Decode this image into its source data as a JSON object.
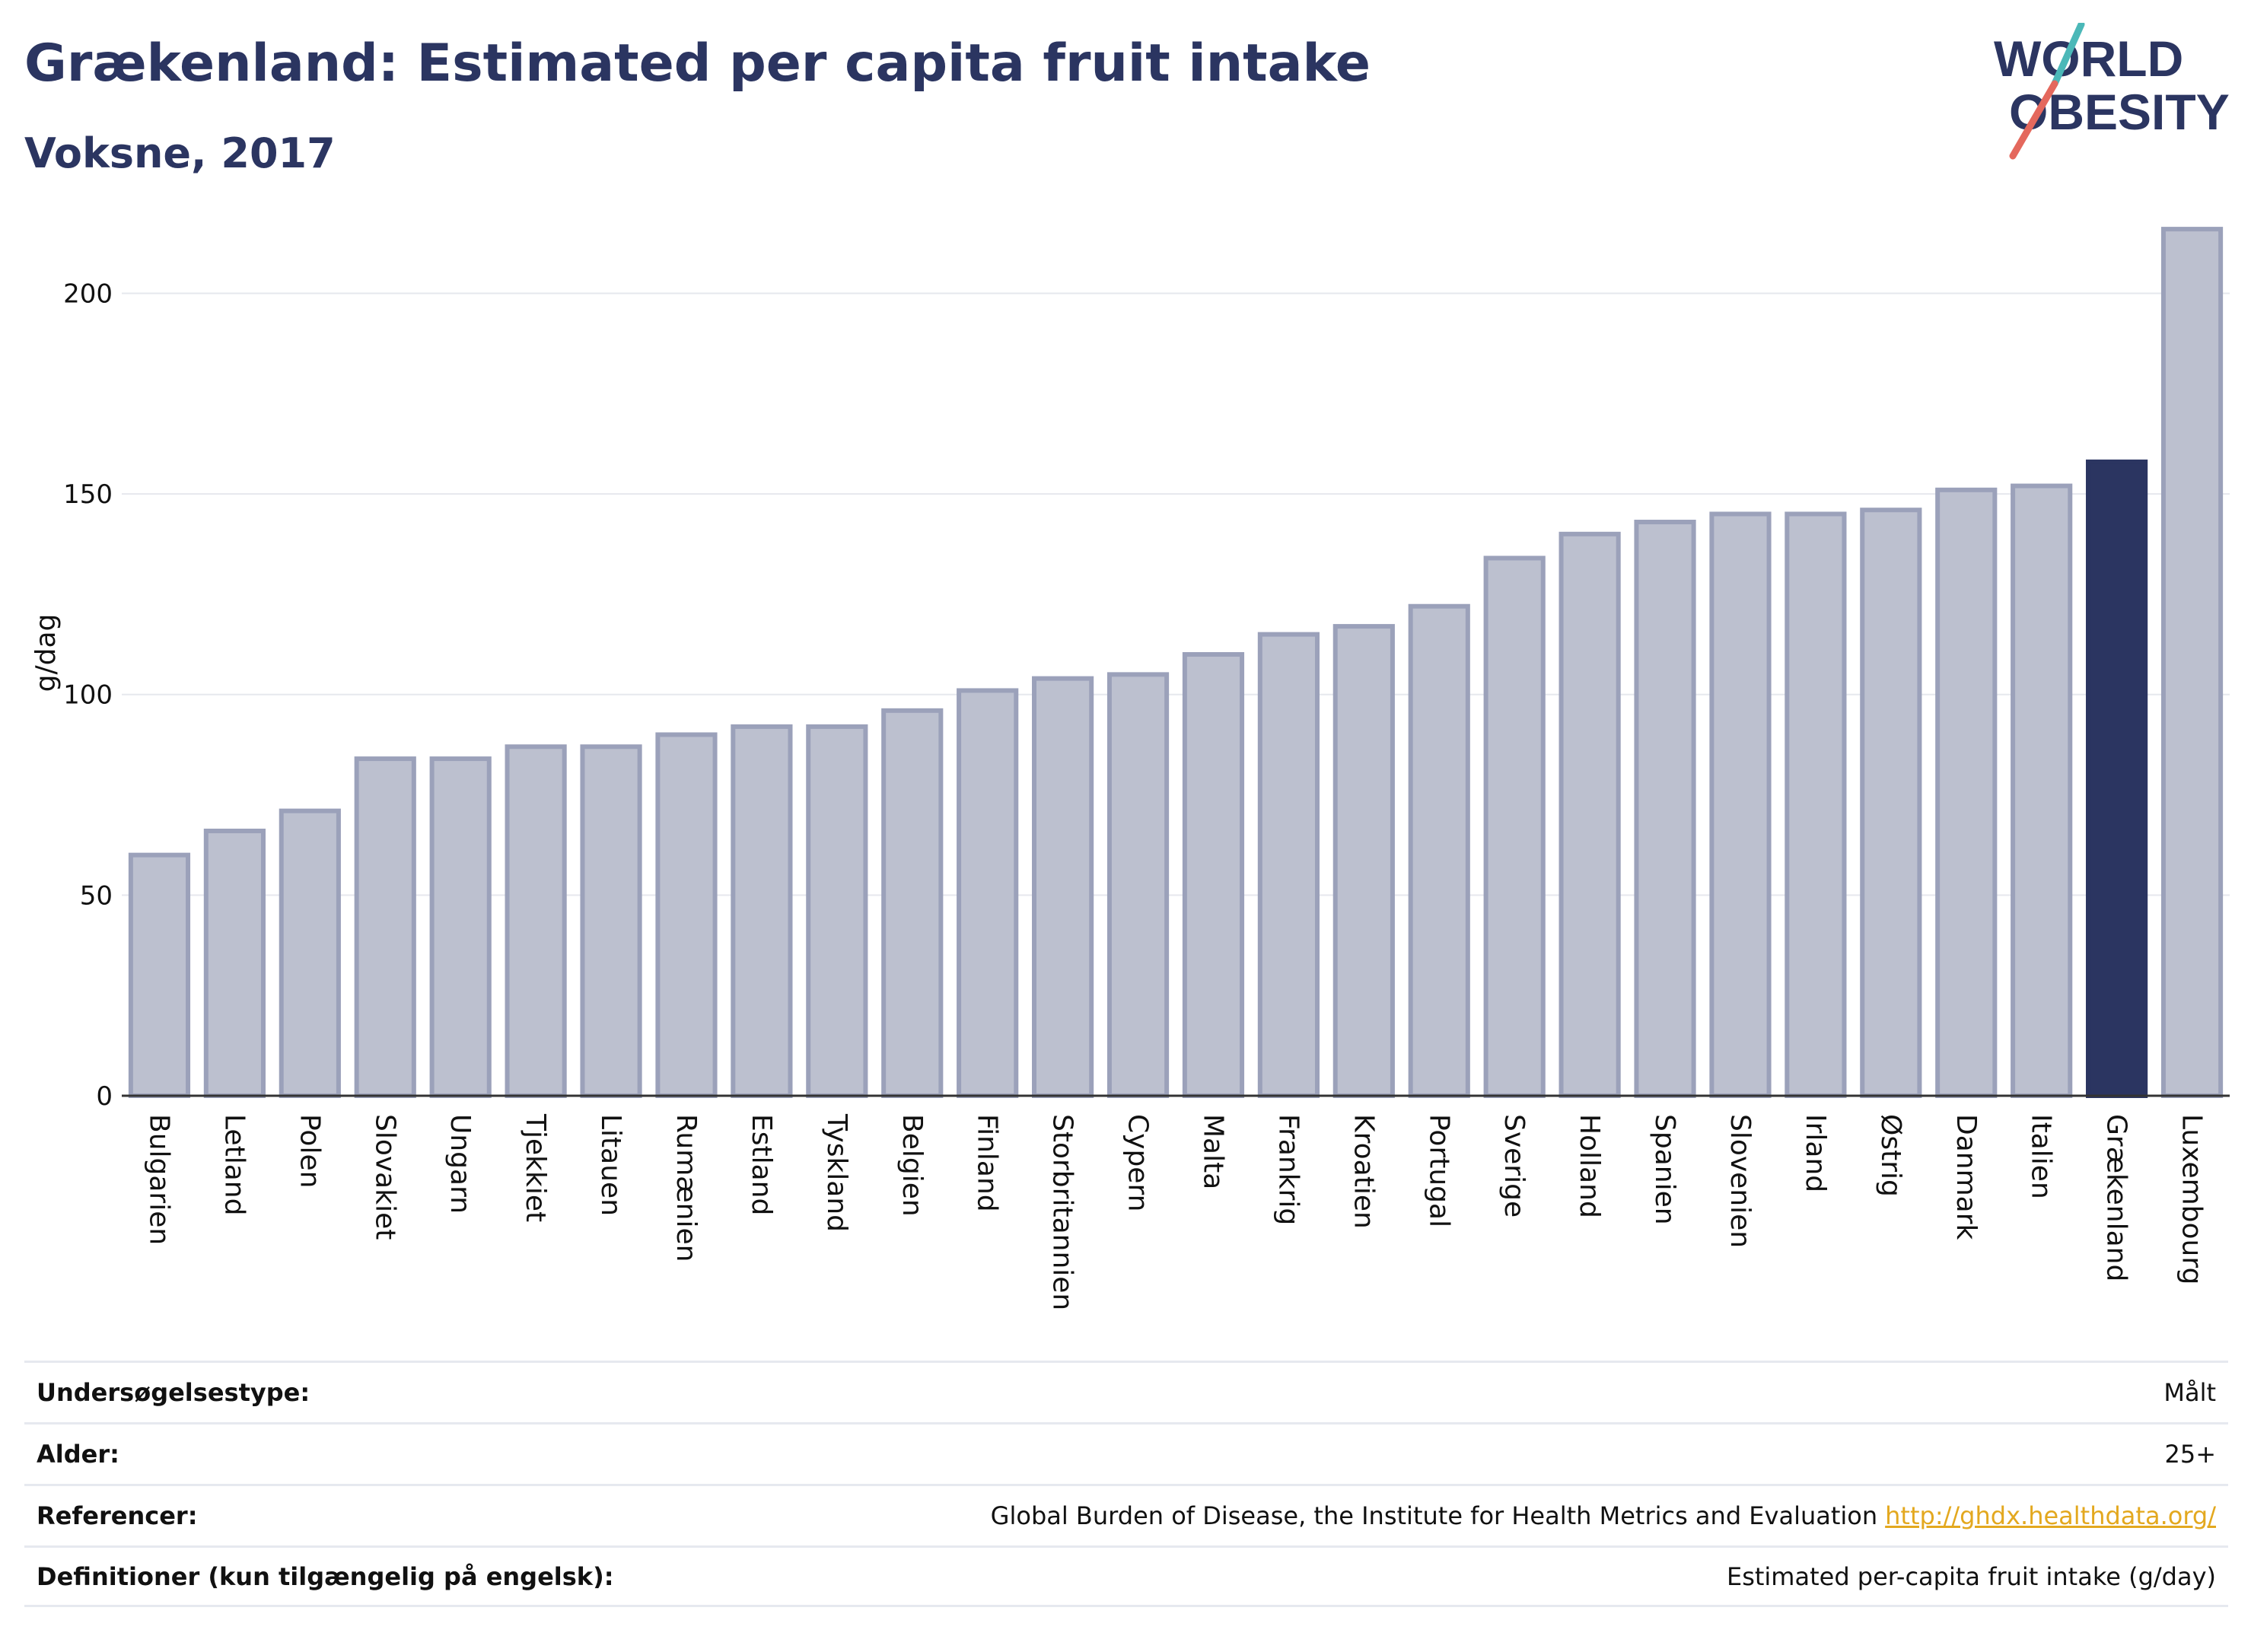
{
  "header": {
    "title": "Grækenland: Estimated per capita fruit intake",
    "subtitle": "Voksne, 2017"
  },
  "logo": {
    "line1": "WORLD",
    "line2": "OBESITY",
    "colors": {
      "text": "#2b3561",
      "slash_red": "#e4685d",
      "slash_teal": "#4bb8b8"
    }
  },
  "chart_data": {
    "type": "bar",
    "ylabel": "g/dag",
    "ylim": [
      0,
      220
    ],
    "yticks": [
      0,
      50,
      100,
      150,
      200
    ],
    "grid": true,
    "categories": [
      "Bulgarien",
      "Letland",
      "Polen",
      "Slovakiet",
      "Ungarn",
      "Tjekkiet",
      "Litauen",
      "Rumænien",
      "Estland",
      "Tyskland",
      "Belgien",
      "Finland",
      "Storbritannien",
      "Cypern",
      "Malta",
      "Frankrig",
      "Kroatien",
      "Portugal",
      "Sverige",
      "Holland",
      "Spanien",
      "Slovenien",
      "Irland",
      "Østrig",
      "Danmark",
      "Italien",
      "Grækenland",
      "Luxembourg"
    ],
    "values": [
      60,
      66,
      71,
      84,
      84,
      87,
      87,
      90,
      92,
      92,
      96,
      101,
      104,
      105,
      110,
      115,
      117,
      122,
      134,
      140,
      143,
      145,
      145,
      146,
      151,
      152,
      158,
      216
    ],
    "highlight": "Grækenland",
    "colors": {
      "bar": "#bcc0cf",
      "bar_border": "#9ba1ba",
      "highlight": "#2b3561",
      "grid": "#e6e8ee",
      "axis": "#333333"
    }
  },
  "info": {
    "rows": [
      {
        "label": "Undersøgelsestype:",
        "value": "Målt"
      },
      {
        "label": "Alder:",
        "value": "25+"
      },
      {
        "label": "Referencer:",
        "value": "Global Burden of Disease, the Institute for Health Metrics and Evaluation",
        "link": "http://ghdx.healthdata.org/"
      },
      {
        "label": "Definitioner (kun tilgængelig på engelsk):",
        "value": "Estimated per-capita fruit intake (g/day)"
      }
    ]
  }
}
